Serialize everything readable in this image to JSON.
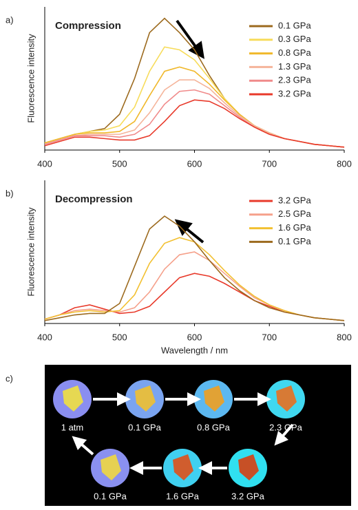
{
  "chart_data": [
    {
      "type": "line",
      "panel_label": "a)",
      "title": "Compression",
      "y_label": "Fluorescence intensity",
      "x": [
        400,
        420,
        440,
        460,
        480,
        500,
        520,
        540,
        560,
        580,
        600,
        620,
        640,
        660,
        680,
        700,
        720,
        740,
        760,
        780,
        800
      ],
      "xlim": [
        400,
        800
      ],
      "xticks": [
        400,
        500,
        600,
        700,
        800
      ],
      "ylim": [
        0,
        100
      ],
      "series": [
        {
          "name": "0.1 GPa",
          "color": "#9c6a1e",
          "values": [
            5,
            8,
            11,
            13,
            15,
            25,
            50,
            82,
            92,
            82,
            70,
            52,
            36,
            25,
            17,
            12,
            8,
            6,
            4,
            3,
            2
          ]
        },
        {
          "name": "0.3 GPa",
          "color": "#f7dc5a",
          "values": [
            5,
            8,
            11,
            13,
            14,
            17,
            30,
            55,
            72,
            70,
            63,
            50,
            36,
            25,
            17,
            12,
            8,
            6,
            4,
            3,
            2
          ]
        },
        {
          "name": "0.8 GPa",
          "color": "#f0b82a",
          "values": [
            5,
            8,
            11,
            12,
            12,
            13,
            20,
            38,
            55,
            58,
            55,
            46,
            35,
            25,
            17,
            12,
            8,
            6,
            4,
            3,
            2
          ]
        },
        {
          "name": "1.3 GPa",
          "color": "#f5b49a",
          "values": [
            4,
            7,
            10,
            11,
            11,
            11,
            14,
            26,
            42,
            49,
            49,
            43,
            33,
            24,
            17,
            12,
            8,
            6,
            4,
            3,
            2
          ]
        },
        {
          "name": "2.3 GPa",
          "color": "#f08a8a",
          "values": [
            4,
            7,
            10,
            10,
            10,
            9,
            11,
            18,
            32,
            41,
            42,
            39,
            31,
            23,
            16,
            11,
            8,
            6,
            4,
            3,
            2
          ]
        },
        {
          "name": "3.2 GPa",
          "color": "#e8392a",
          "values": [
            3,
            6,
            9,
            9,
            8,
            7,
            7,
            10,
            20,
            31,
            35,
            34,
            29,
            22,
            16,
            11,
            8,
            6,
            4,
            3,
            2
          ]
        }
      ]
    },
    {
      "type": "line",
      "panel_label": "b)",
      "title": "Decompression",
      "y_label": "Fluorescence intensity",
      "x_label": "Wavelength / nm",
      "x": [
        400,
        420,
        440,
        460,
        480,
        500,
        520,
        540,
        560,
        580,
        600,
        620,
        640,
        660,
        680,
        700,
        720,
        740,
        760,
        780,
        800
      ],
      "xlim": [
        400,
        800
      ],
      "xticks": [
        400,
        500,
        600,
        700,
        800
      ],
      "ylim": [
        0,
        100
      ],
      "series": [
        {
          "name": "3.2 GPa",
          "color": "#e8392a",
          "values": [
            3,
            6,
            11,
            13,
            10,
            7,
            8,
            12,
            22,
            32,
            35,
            33,
            28,
            22,
            16,
            12,
            8,
            6,
            4,
            3,
            2
          ]
        },
        {
          "name": "2.5 GPa",
          "color": "#f5a08a",
          "values": [
            3,
            6,
            9,
            10,
            9,
            8,
            11,
            22,
            38,
            48,
            50,
            44,
            35,
            26,
            18,
            13,
            9,
            6,
            4,
            3,
            2
          ]
        },
        {
          "name": "1.6 GPa",
          "color": "#f2c030",
          "values": [
            3,
            6,
            8,
            9,
            8,
            9,
            20,
            42,
            56,
            60,
            57,
            48,
            37,
            27,
            19,
            13,
            9,
            6,
            4,
            3,
            2
          ]
        },
        {
          "name": "0.1 GPa",
          "color": "#9c6a1e",
          "values": [
            2,
            4,
            6,
            7,
            7,
            14,
            40,
            66,
            75,
            68,
            57,
            44,
            32,
            23,
            16,
            11,
            8,
            6,
            4,
            3,
            2
          ]
        }
      ]
    }
  ],
  "photo_panel": {
    "label": "c)",
    "captions": [
      "1 atm",
      "0.1 GPa",
      "0.8 GPa",
      "2.3 GPa",
      "3.2 GPa",
      "1.6 GPa",
      "0.1 GPa"
    ]
  }
}
